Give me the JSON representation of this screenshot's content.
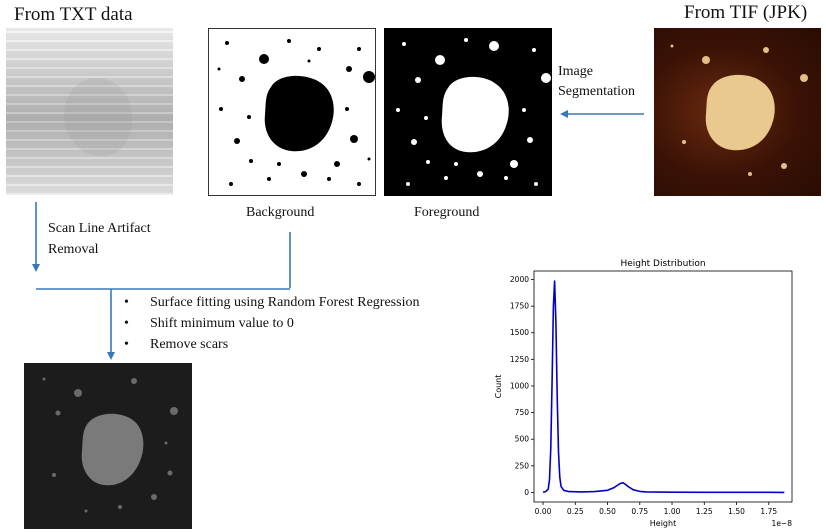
{
  "labels": {
    "txt_title": "From TXT data",
    "tif_title": "From TIF (JPK)",
    "segmentation_line1": "Image",
    "segmentation_line2": "Segmentation",
    "background": "Background",
    "foreground": "Foreground",
    "scan_line1": "Scan Line Artifact",
    "scan_line2": "Removal"
  },
  "steps": [
    "Surface fitting using Random Forest Regression",
    "Shift minimum value to 0",
    "Remove scars"
  ],
  "bullet_glyph": "•",
  "colors": {
    "arrow": "#3a78b8",
    "plot_line": "#0000cc"
  },
  "chart_data": {
    "type": "line",
    "title": "Height Distribution",
    "xlabel": "Height",
    "ylabel": "Count",
    "x_offset_label": "1e−8",
    "xlim": [
      -0.07,
      1.93
    ],
    "ylim": [
      -90,
      2080
    ],
    "xticks": [
      0.0,
      0.25,
      0.5,
      0.75,
      1.0,
      1.25,
      1.5,
      1.75
    ],
    "xtick_labels": [
      "0.00",
      "0.25",
      "0.50",
      "0.75",
      "1.00",
      "1.25",
      "1.50",
      "1.75"
    ],
    "yticks": [
      0,
      250,
      500,
      750,
      1000,
      1250,
      1500,
      1750,
      2000
    ],
    "ytick_labels": [
      "0",
      "250",
      "500",
      "750",
      "1000",
      "1250",
      "1500",
      "1750",
      "2000"
    ],
    "series": [
      {
        "x": [
          0.0,
          0.02,
          0.04,
          0.05,
          0.06,
          0.07,
          0.08,
          0.09,
          0.1,
          0.11,
          0.12,
          0.13,
          0.14,
          0.16,
          0.2,
          0.3,
          0.4,
          0.5,
          0.55,
          0.58,
          0.6,
          0.62,
          0.64,
          0.66,
          0.7,
          0.75,
          0.8,
          1.0,
          1.25,
          1.5,
          1.75,
          1.87
        ],
        "y": [
          3,
          8,
          30,
          120,
          420,
          1050,
          1750,
          1985,
          1600,
          900,
          380,
          140,
          55,
          20,
          8,
          5,
          8,
          20,
          45,
          70,
          85,
          90,
          75,
          55,
          25,
          10,
          5,
          2,
          1,
          1,
          1,
          0
        ]
      }
    ]
  }
}
